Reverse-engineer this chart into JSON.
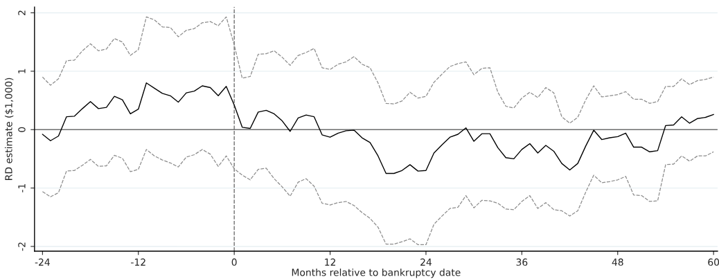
{
  "chart_data": {
    "type": "line",
    "xlabel": "Months relative to bankruptcy date",
    "ylabel": "RD estimate ($1,000)",
    "x": [
      -24,
      -23,
      -22,
      -21,
      -20,
      -19,
      -18,
      -17,
      -16,
      -15,
      -14,
      -13,
      -12,
      -11,
      -10,
      -9,
      -8,
      -7,
      -6,
      -5,
      -4,
      -3,
      -2,
      -1,
      0,
      1,
      2,
      3,
      4,
      5,
      6,
      7,
      8,
      9,
      10,
      11,
      12,
      13,
      14,
      15,
      16,
      17,
      18,
      19,
      20,
      21,
      22,
      23,
      24,
      25,
      26,
      27,
      28,
      29,
      30,
      31,
      32,
      33,
      34,
      35,
      36,
      37,
      38,
      39,
      40,
      41,
      42,
      43,
      44,
      45,
      46,
      47,
      48,
      49,
      50,
      51,
      52,
      53,
      54,
      55,
      56,
      57,
      58,
      59,
      60
    ],
    "series": [
      {
        "color": "#000000",
        "line_style": "solid",
        "values": [
          -0.08,
          -0.19,
          -0.11,
          0.22,
          0.23,
          0.36,
          0.48,
          0.36,
          0.38,
          0.57,
          0.51,
          0.27,
          0.35,
          0.8,
          0.71,
          0.62,
          0.58,
          0.47,
          0.63,
          0.66,
          0.75,
          0.72,
          0.58,
          0.74,
          0.42,
          0.04,
          0.02,
          0.3,
          0.33,
          0.27,
          0.15,
          -0.03,
          0.2,
          0.25,
          0.22,
          -0.09,
          -0.13,
          -0.06,
          -0.02,
          -0.01,
          -0.14,
          -0.22,
          -0.45,
          -0.75,
          -0.75,
          -0.7,
          -0.6,
          -0.71,
          -0.7,
          -0.4,
          -0.26,
          -0.13,
          -0.08,
          0.03,
          -0.2,
          -0.07,
          -0.07,
          -0.31,
          -0.48,
          -0.5,
          -0.34,
          -0.24,
          -0.4,
          -0.27,
          -0.37,
          -0.58,
          -0.69,
          -0.58,
          -0.28,
          -0.01,
          -0.17,
          -0.14,
          -0.12,
          -0.06,
          -0.3,
          -0.3,
          -0.38,
          -0.36,
          0.07,
          0.08,
          0.22,
          0.11,
          0.19,
          0.21,
          0.26
        ]
      },
      {
        "color": "#8c8c8c",
        "line_style": "dashed",
        "values": [
          0.9,
          0.76,
          0.87,
          1.18,
          1.19,
          1.35,
          1.47,
          1.35,
          1.38,
          1.56,
          1.5,
          1.27,
          1.37,
          1.93,
          1.88,
          1.76,
          1.75,
          1.59,
          1.7,
          1.73,
          1.83,
          1.85,
          1.78,
          1.93,
          1.45,
          0.88,
          0.91,
          1.29,
          1.3,
          1.35,
          1.24,
          1.1,
          1.27,
          1.32,
          1.39,
          1.06,
          1.03,
          1.12,
          1.16,
          1.25,
          1.12,
          1.06,
          0.8,
          0.45,
          0.44,
          0.49,
          0.64,
          0.54,
          0.57,
          0.81,
          0.95,
          1.08,
          1.13,
          1.16,
          0.94,
          1.05,
          1.06,
          0.64,
          0.4,
          0.37,
          0.54,
          0.64,
          0.55,
          0.72,
          0.63,
          0.22,
          0.11,
          0.21,
          0.51,
          0.75,
          0.56,
          0.58,
          0.6,
          0.65,
          0.52,
          0.52,
          0.45,
          0.48,
          0.74,
          0.74,
          0.87,
          0.77,
          0.84,
          0.86,
          0.9
        ]
      },
      {
        "color": "#8c8c8c",
        "line_style": "dashed",
        "values": [
          -1.06,
          -1.15,
          -1.08,
          -0.71,
          -0.7,
          -0.61,
          -0.51,
          -0.63,
          -0.62,
          -0.44,
          -0.49,
          -0.72,
          -0.68,
          -0.34,
          -0.45,
          -0.52,
          -0.57,
          -0.64,
          -0.47,
          -0.43,
          -0.34,
          -0.42,
          -0.63,
          -0.45,
          -0.67,
          -0.78,
          -0.86,
          -0.68,
          -0.66,
          -0.84,
          -0.98,
          -1.14,
          -0.9,
          -0.84,
          -0.97,
          -1.26,
          -1.29,
          -1.25,
          -1.23,
          -1.3,
          -1.42,
          -1.52,
          -1.67,
          -1.96,
          -1.96,
          -1.92,
          -1.87,
          -1.97,
          -1.97,
          -1.62,
          -1.48,
          -1.35,
          -1.33,
          -1.13,
          -1.34,
          -1.21,
          -1.22,
          -1.26,
          -1.36,
          -1.37,
          -1.23,
          -1.13,
          -1.35,
          -1.25,
          -1.37,
          -1.39,
          -1.48,
          -1.39,
          -1.07,
          -0.78,
          -0.91,
          -0.89,
          -0.86,
          -0.8,
          -1.12,
          -1.13,
          -1.23,
          -1.22,
          -0.6,
          -0.59,
          -0.45,
          -0.54,
          -0.45,
          -0.45,
          -0.38
        ]
      }
    ],
    "xlim": [
      -25,
      60.5
    ],
    "xticks": [
      -24,
      -12,
      0,
      12,
      24,
      36,
      48,
      60
    ],
    "ylim": [
      -2.08,
      2.1
    ],
    "yticks": [
      -2,
      -1,
      0,
      1,
      2
    ],
    "ref_lines": [
      {
        "axis": "y",
        "value": 0,
        "color": "#707070",
        "line_style": "solid"
      },
      {
        "axis": "x",
        "value": 0,
        "color": "#707070",
        "line_style": "dashed"
      }
    ],
    "grid": "y",
    "marker": "none"
  }
}
